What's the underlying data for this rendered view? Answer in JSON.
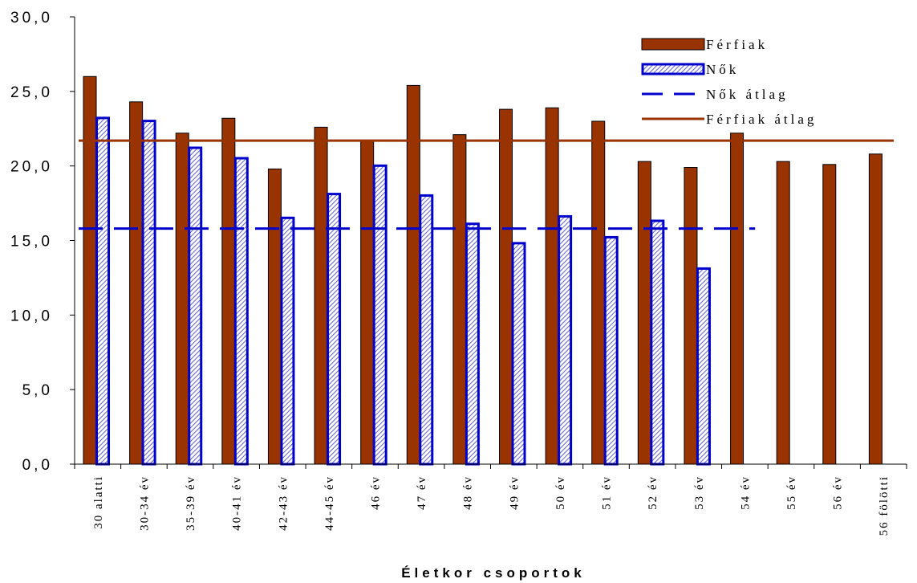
{
  "chart_data": {
    "type": "bar",
    "title": "",
    "xlabel": "Életkor csoportok",
    "ylabel": "",
    "ylim": [
      0,
      30
    ],
    "yticks": [
      "0,0",
      "5,0",
      "10,0",
      "15,0",
      "20,0",
      "25,0",
      "30,0"
    ],
    "ytick_values": [
      0,
      5,
      10,
      15,
      20,
      25,
      30
    ],
    "grid": false,
    "legend_position": "top-right",
    "categories": [
      "30 alatti",
      "30-34 év",
      "35-39 év",
      "40-41 év",
      "42-43 év",
      "44-45 év",
      "46 év",
      "47 év",
      "48 év",
      "49 év",
      "50 év",
      "51 év",
      "52 év",
      "53 év",
      "54 év",
      "55 év",
      "56 év",
      "56 fölötti"
    ],
    "series": [
      {
        "name": "Férfiak",
        "color": "#993300",
        "values": [
          26.0,
          24.3,
          22.2,
          23.2,
          19.8,
          22.6,
          21.7,
          25.4,
          22.1,
          23.8,
          23.9,
          23.0,
          20.3,
          19.9,
          22.2,
          20.3,
          20.1,
          20.8
        ]
      },
      {
        "name": "Nők",
        "color": "#0000cc",
        "fill": "hatched",
        "values": [
          23.3,
          23.1,
          21.3,
          20.6,
          16.6,
          18.2,
          20.1,
          18.1,
          16.2,
          14.9,
          16.7,
          15.3,
          16.4,
          13.2,
          null,
          null,
          null,
          null
        ]
      }
    ],
    "reference_lines": [
      {
        "name": "Nők átlag",
        "value": 15.8,
        "style": "dashed",
        "color": "#0000cc",
        "x_from": "30 alatti",
        "x_to": "54 év"
      },
      {
        "name": "Férfiak átlag",
        "value": 21.7,
        "style": "solid",
        "color": "#993300",
        "x_from": "30 alatti",
        "x_to": "56 fölötti"
      }
    ],
    "legend": [
      "Férfiak",
      "Nők",
      "Nők átlag",
      "Férfiak átlag"
    ]
  }
}
